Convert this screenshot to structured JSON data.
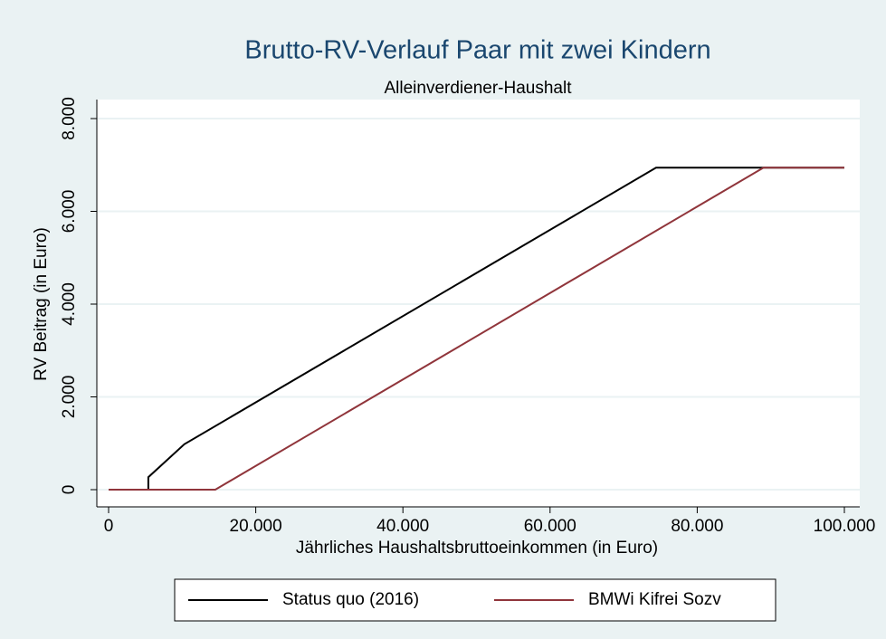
{
  "chart_data": {
    "type": "line",
    "title": "Brutto-RV-Verlauf Paar mit zwei Kindern",
    "subtitle": "Alleinverdiener-Haushalt",
    "x_label": "Jährliches Haushaltsbruttoeinkommen (in Euro)",
    "y_label": "RV Beitrag (in Euro)",
    "series": [
      {
        "name": "Status quo (2016)",
        "color": "#000000",
        "x": [
          0,
          5400,
          5400,
          10300,
          74400,
          100000
        ],
        "values": [
          0,
          0,
          270,
          980,
          6940,
          6940
        ]
      },
      {
        "name": "BMWi Kifrei Sozv",
        "color": "#90353b",
        "x": [
          0,
          14500,
          89000,
          100000
        ],
        "values": [
          0,
          0,
          6940,
          6940
        ]
      }
    ],
    "xlim": [
      0,
      100000
    ],
    "ylim": [
      0,
      8000
    ],
    "xticks": [
      0,
      {
        "value": 20000,
        "label": "20.000"
      },
      {
        "value": 40000,
        "label": "40.000"
      },
      {
        "value": 60000,
        "label": "60.000"
      },
      {
        "value": 80000,
        "label": "80.000"
      },
      {
        "value": 100000,
        "label": "100.000"
      }
    ],
    "yticks": [
      0,
      {
        "value": 2000,
        "label": "2.000"
      },
      {
        "value": 4000,
        "label": "4.000"
      },
      {
        "value": 6000,
        "label": "6.000"
      },
      {
        "value": 8000,
        "label": "8.000"
      }
    ],
    "grid": true,
    "legend_position": "bottom"
  }
}
